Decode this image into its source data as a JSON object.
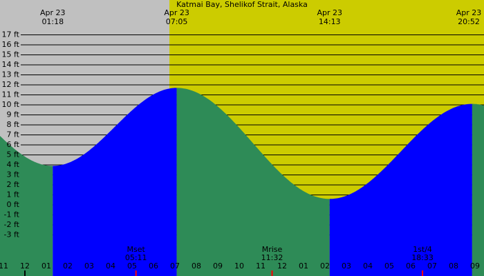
{
  "chart_data": {
    "type": "tide",
    "title": "Katmai Bay, Shelikof Strait, Alaska",
    "extremes": [
      {
        "date": "Apr 23",
        "time": "01:18",
        "height": 3.9
      },
      {
        "date": "Apr 23",
        "time": "07:05",
        "height": 11.7
      },
      {
        "date": "Apr 23",
        "time": "14:13",
        "height": 0.6
      },
      {
        "date": "Apr 23",
        "time": "20:52",
        "height": 10.1
      }
    ],
    "ylim": [
      -7,
      20
    ],
    "yticks": [
      {
        "value": 17,
        "label": "17 ft"
      },
      {
        "value": 16,
        "label": "16 ft"
      },
      {
        "value": 15,
        "label": "15 ft"
      },
      {
        "value": 14,
        "label": "14 ft"
      },
      {
        "value": 13,
        "label": "13 ft"
      },
      {
        "value": 12,
        "label": "12 ft"
      },
      {
        "value": 11,
        "label": "11 ft"
      },
      {
        "value": 10,
        "label": "10 ft"
      },
      {
        "value": 9,
        "label": "9 ft"
      },
      {
        "value": 8,
        "label": "8 ft"
      },
      {
        "value": 7,
        "label": "7 ft"
      },
      {
        "value": 6,
        "label": "6 ft"
      },
      {
        "value": 5,
        "label": "5 ft"
      },
      {
        "value": 4,
        "label": "4 ft"
      },
      {
        "value": 3,
        "label": "3 ft"
      },
      {
        "value": 2,
        "label": "2 ft"
      },
      {
        "value": 1,
        "label": "1 ft"
      },
      {
        "value": 0,
        "label": "0 ft"
      },
      {
        "value": -1,
        "label": "-1 ft"
      },
      {
        "value": -2,
        "label": "-2 ft"
      },
      {
        "value": -3,
        "label": "-3 ft"
      }
    ],
    "hour_ticks": [
      "11",
      "12",
      "01",
      "02",
      "03",
      "04",
      "05",
      "06",
      "07",
      "08",
      "09",
      "10",
      "11",
      "12",
      "01",
      "02",
      "03",
      "04",
      "05",
      "06",
      "07",
      "08",
      "09"
    ],
    "moon_events": [
      {
        "label": "Mset",
        "time": "05:11"
      },
      {
        "label": "Mrise",
        "time": "11:32"
      },
      {
        "label": "1st/4",
        "time": "18:33"
      }
    ],
    "rising_color": "#0000ff",
    "falling_color": "#2e8b57"
  }
}
